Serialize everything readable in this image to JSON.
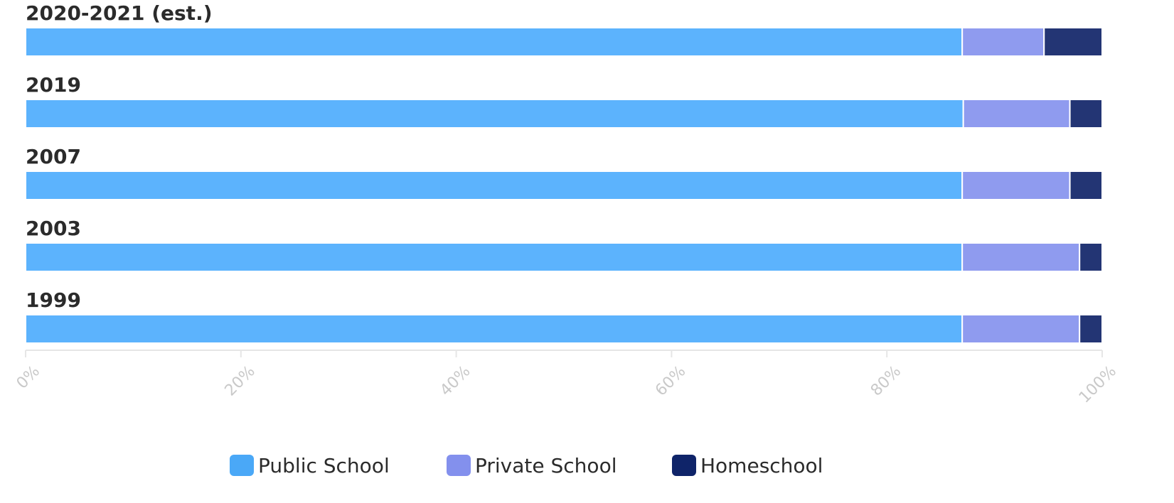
{
  "chart_data": {
    "type": "bar",
    "orientation": "horizontal",
    "stacked": true,
    "categories": [
      "2020-2021 (est.)",
      "2019",
      "2007",
      "2003",
      "1999"
    ],
    "series": [
      {
        "name": "Public School",
        "color": "#5cb3fd",
        "values": [
          87.0,
          87.1,
          87.0,
          87.0,
          87.0
        ]
      },
      {
        "name": "Private School",
        "color": "#8f9bef",
        "values": [
          7.6,
          9.9,
          10.0,
          10.9,
          10.9
        ]
      },
      {
        "name": "Homeschool",
        "color": "#233574",
        "values": [
          5.4,
          3.0,
          3.0,
          2.1,
          2.1
        ]
      }
    ],
    "x_ticks": [
      "0%",
      "20%",
      "40%",
      "60%",
      "80%",
      "100%"
    ],
    "xlim": [
      0,
      100
    ],
    "legend_position": "bottom-center",
    "legend_colors": [
      "#4aa8f7",
      "#8390ed",
      "#0f2469"
    ],
    "grid": false
  }
}
